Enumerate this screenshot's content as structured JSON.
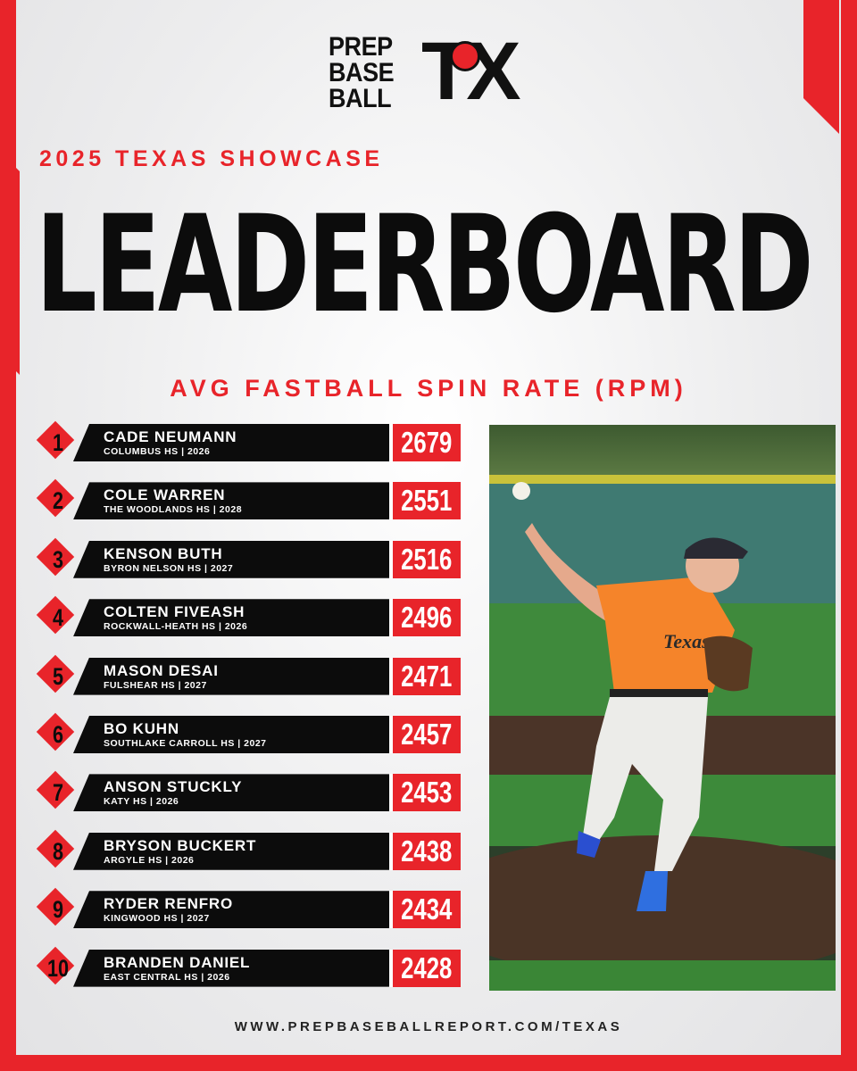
{
  "logo": {
    "line1": "PREP",
    "line2": "BASE",
    "line3": "BALL",
    "state": "TX"
  },
  "subtitle": "2025 TEXAS SHOWCASE",
  "headline": "LEADERBOARD",
  "metric": "AVG FASTBALL SPIN RATE (RPM)",
  "colors": {
    "accent": "#e8242a",
    "dark": "#0c0c0c",
    "background": "#efefef"
  },
  "players": [
    {
      "rank": "1",
      "name": "CADE NEUMANN",
      "meta": "COLUMBUS HS | 2026",
      "value": "2679"
    },
    {
      "rank": "2",
      "name": "COLE WARREN",
      "meta": "THE WOODLANDS HS | 2028",
      "value": "2551"
    },
    {
      "rank": "3",
      "name": "KENSON BUTH",
      "meta": "BYRON NELSON HS | 2027",
      "value": "2516"
    },
    {
      "rank": "4",
      "name": "COLTEN FIVEASH",
      "meta": "ROCKWALL-HEATH HS | 2026",
      "value": "2496"
    },
    {
      "rank": "5",
      "name": "MASON DESAI",
      "meta": "FULSHEAR HS | 2027",
      "value": "2471"
    },
    {
      "rank": "6",
      "name": "BO KUHN",
      "meta": "SOUTHLAKE CARROLL HS | 2027",
      "value": "2457"
    },
    {
      "rank": "7",
      "name": "ANSON STUCKLY",
      "meta": "KATY HS | 2026",
      "value": "2453"
    },
    {
      "rank": "8",
      "name": "BRYSON BUCKERT",
      "meta": "ARGYLE HS | 2026",
      "value": "2438"
    },
    {
      "rank": "9",
      "name": "RYDER RENFRO",
      "meta": "KINGWOOD HS | 2027",
      "value": "2434"
    },
    {
      "rank": "10",
      "name": "BRANDEN DANIEL",
      "meta": "EAST CENTRAL HS | 2026",
      "value": "2428"
    }
  ],
  "photo": {
    "jersey_text": "Texas"
  },
  "footer": "WWW.PREPBASEBALLREPORT.COM/TEXAS"
}
